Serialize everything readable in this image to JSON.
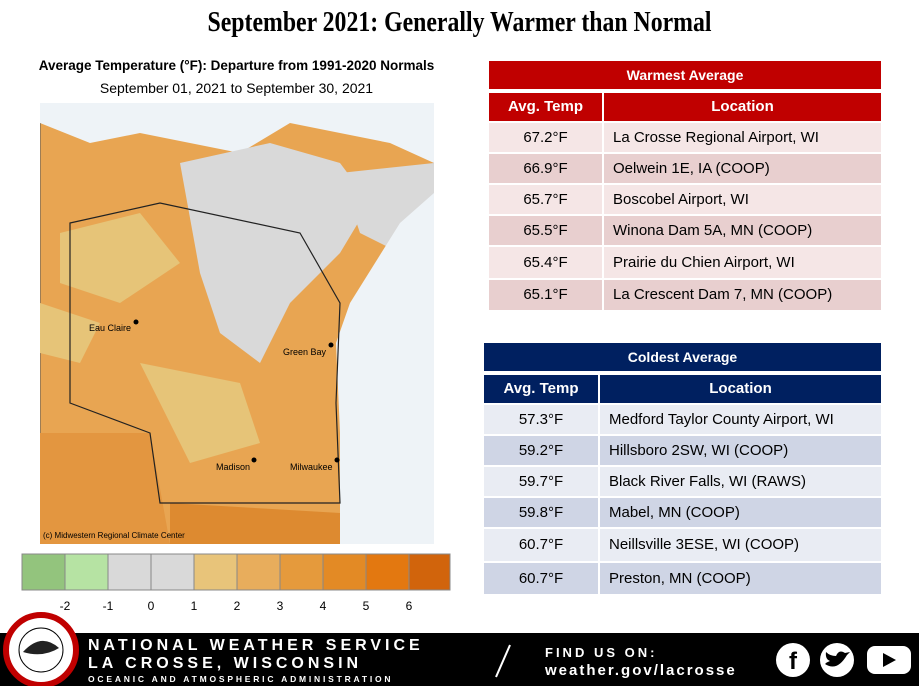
{
  "header": {
    "title": "September 2021: Generally Warmer than Normal"
  },
  "map": {
    "title": "Average Temperature (°F): Departure from 1991-2020 Normals",
    "subtitle": "September 01, 2021 to September 30, 2021",
    "credit": "(c) Midwestern Regional Climate Center",
    "cities": [
      "Eau Claire",
      "Green Bay",
      "Madison",
      "Milwaukee"
    ],
    "legend": [
      "-2",
      "-1",
      "0",
      "1",
      "2",
      "3",
      "4",
      "5",
      "6"
    ]
  },
  "warmest": {
    "title": "Warmest  Average",
    "columns": [
      "Avg. Temp",
      "Location"
    ],
    "rows": [
      [
        "67.2°F",
        "La Crosse Regional Airport, WI"
      ],
      [
        "66.9°F",
        "Oelwein 1E, IA (COOP)"
      ],
      [
        "65.7°F",
        "Boscobel Airport, WI"
      ],
      [
        "65.5°F",
        "Winona Dam 5A, MN (COOP)"
      ],
      [
        "65.4°F",
        "Prairie du Chien Airport, WI"
      ],
      [
        "65.1°F",
        "La Crescent Dam 7, MN (COOP)"
      ]
    ]
  },
  "coldest": {
    "title": "Coldest Average",
    "columns": [
      "Avg. Temp",
      "Location"
    ],
    "rows": [
      [
        "57.3°F",
        "Medford Taylor County Airport, WI"
      ],
      [
        "59.2°F",
        "Hillsboro 2SW, WI (COOP)"
      ],
      [
        "59.7°F",
        "Black River Falls, WI (RAWS)"
      ],
      [
        "59.8°F",
        "Mabel, MN (COOP)"
      ],
      [
        "60.7°F",
        "Neillsville 3ESE, WI (COOP)"
      ],
      [
        "60.7°F",
        "Preston, MN (COOP)"
      ]
    ]
  },
  "footer": {
    "agency": "NATIONAL WEATHER SERVICE",
    "office": "LA CROSSE, WISCONSIN",
    "parent": "OCEANIC AND ATMOSPHERIC ADMINISTRATION",
    "find": "FIND US ON:",
    "url": "weather.gov/lacrosse"
  }
}
